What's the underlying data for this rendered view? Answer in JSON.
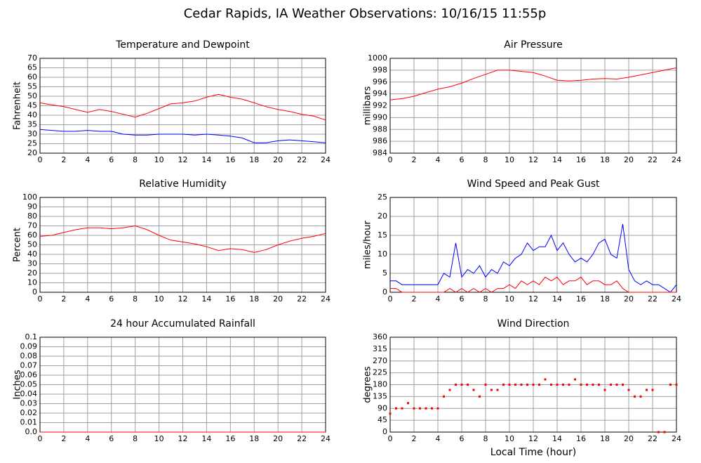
{
  "title": "Cedar Rapids, IA Weather Observations: 10/16/15 11:55p",
  "xlabel": "Local Time (hour)",
  "chart_data": [
    {
      "type": "line",
      "title": "Temperature and Dewpoint",
      "ylabel": "Fahrenheit",
      "x": [
        0,
        1,
        2,
        3,
        4,
        5,
        6,
        7,
        8,
        9,
        10,
        11,
        12,
        13,
        14,
        15,
        16,
        17,
        18,
        19,
        20,
        21,
        22,
        23,
        24
      ],
      "series": [
        {
          "color": "#ff0000",
          "values": [
            46.5,
            45.5,
            44.5,
            43,
            41.5,
            43,
            42,
            40.5,
            39,
            41,
            43.5,
            46,
            46.5,
            47.5,
            49.5,
            51,
            49.5,
            48.5,
            46.5,
            44.5,
            43,
            42,
            40.5,
            39.5,
            37.5
          ]
        },
        {
          "color": "#0000ff",
          "values": [
            32.5,
            32,
            31.5,
            31.5,
            32,
            31.5,
            31.5,
            30,
            29.5,
            29.5,
            30,
            30,
            30,
            29.5,
            30,
            29.5,
            29,
            28,
            25.5,
            25.5,
            26.5,
            27,
            26.5,
            26,
            25.5
          ]
        }
      ],
      "xlim": [
        0,
        24
      ],
      "xticks": [
        0,
        2,
        4,
        6,
        8,
        10,
        12,
        14,
        16,
        18,
        20,
        22,
        24
      ],
      "ylim": [
        20,
        70
      ],
      "yticks": [
        20,
        25,
        30,
        35,
        40,
        45,
        50,
        55,
        60,
        65,
        70
      ],
      "grid": true
    },
    {
      "type": "line",
      "title": "Air Pressure",
      "ylabel": "millibars",
      "x": [
        0,
        1,
        2,
        3,
        4,
        5,
        6,
        7,
        8,
        9,
        10,
        11,
        12,
        13,
        14,
        15,
        16,
        17,
        18,
        19,
        20,
        21,
        22,
        23,
        24
      ],
      "series": [
        {
          "color": "#ff0000",
          "values": [
            993,
            993.2,
            993.6,
            994.2,
            994.8,
            995.2,
            995.8,
            996.6,
            997.3,
            998,
            998,
            997.8,
            997.6,
            997,
            996.3,
            996.2,
            996.3,
            996.5,
            996.6,
            996.5,
            996.8,
            997.2,
            997.6,
            998,
            998.4
          ]
        }
      ],
      "xlim": [
        0,
        24
      ],
      "xticks": [
        0,
        2,
        4,
        6,
        8,
        10,
        12,
        14,
        16,
        18,
        20,
        22,
        24
      ],
      "ylim": [
        984,
        1000
      ],
      "yticks": [
        984,
        986,
        988,
        990,
        992,
        994,
        996,
        998,
        1000
      ],
      "grid": true
    },
    {
      "type": "line",
      "title": "Relative Humidity",
      "ylabel": "Percent",
      "x": [
        0,
        1,
        2,
        3,
        4,
        5,
        6,
        7,
        8,
        9,
        10,
        11,
        12,
        13,
        14,
        15,
        16,
        17,
        18,
        19,
        20,
        21,
        22,
        23,
        24
      ],
      "series": [
        {
          "color": "#ff0000",
          "values": [
            59,
            60,
            63,
            66,
            68,
            68,
            67,
            68,
            70,
            66,
            60,
            55,
            53,
            51,
            48,
            44,
            46,
            45,
            42,
            45,
            50,
            54,
            57,
            59,
            62
          ]
        }
      ],
      "xlim": [
        0,
        24
      ],
      "xticks": [
        0,
        2,
        4,
        6,
        8,
        10,
        12,
        14,
        16,
        18,
        20,
        22,
        24
      ],
      "ylim": [
        0,
        100
      ],
      "yticks": [
        0,
        10,
        20,
        30,
        40,
        50,
        60,
        70,
        80,
        90,
        100
      ],
      "grid": true
    },
    {
      "type": "line",
      "title": "Wind Speed and Peak Gust",
      "ylabel": "miles/hour",
      "x": [
        0,
        0.5,
        1,
        1.5,
        2,
        2.5,
        3,
        3.5,
        4,
        4.5,
        5,
        5.5,
        6,
        6.5,
        7,
        7.5,
        8,
        8.5,
        9,
        9.5,
        10,
        10.5,
        11,
        11.5,
        12,
        12.5,
        13,
        13.5,
        14,
        14.5,
        15,
        15.5,
        16,
        16.5,
        17,
        17.5,
        18,
        18.5,
        19,
        19.5,
        20,
        20.5,
        21,
        21.5,
        22,
        22.5,
        23,
        23.5,
        24
      ],
      "series": [
        {
          "color": "#0000ff",
          "values": [
            3,
            3,
            2,
            2,
            2,
            2,
            2,
            2,
            2,
            5,
            4,
            13,
            4,
            6,
            5,
            7,
            4,
            6,
            5,
            8,
            7,
            9,
            10,
            13,
            11,
            12,
            12,
            15,
            11,
            13,
            10,
            8,
            9,
            8,
            10,
            13,
            14,
            10,
            9,
            18,
            6,
            3,
            2,
            3,
            2,
            2,
            1,
            0,
            2
          ]
        },
        {
          "color": "#ff0000",
          "values": [
            1,
            1,
            0,
            0,
            0,
            0,
            0,
            0,
            0,
            0,
            1,
            0,
            1,
            0,
            1,
            0,
            1,
            0,
            1,
            1,
            2,
            1,
            3,
            2,
            3,
            2,
            4,
            3,
            4,
            2,
            3,
            3,
            4,
            2,
            3,
            3,
            2,
            2,
            3,
            1,
            0,
            0,
            0,
            0,
            0,
            0,
            0,
            0,
            0
          ]
        }
      ],
      "xlim": [
        0,
        24
      ],
      "xticks": [
        0,
        2,
        4,
        6,
        8,
        10,
        12,
        14,
        16,
        18,
        20,
        22,
        24
      ],
      "ylim": [
        0,
        25
      ],
      "yticks": [
        0,
        5,
        10,
        15,
        20,
        25
      ],
      "grid": true
    },
    {
      "type": "line",
      "title": "24 hour Accumulated Rainfall",
      "ylabel": "Inches",
      "x": [
        0,
        1,
        2,
        3,
        4,
        5,
        6,
        7,
        8,
        9,
        10,
        11,
        12,
        13,
        14,
        15,
        16,
        17,
        18,
        19,
        20,
        21,
        22,
        23,
        24
      ],
      "series": [
        {
          "color": "#ff0000",
          "values": [
            0,
            0,
            0,
            0,
            0,
            0,
            0,
            0,
            0,
            0,
            0,
            0,
            0,
            0,
            0,
            0,
            0,
            0,
            0,
            0,
            0,
            0,
            0,
            0,
            0
          ]
        }
      ],
      "xlim": [
        0,
        24
      ],
      "xticks": [
        0,
        2,
        4,
        6,
        8,
        10,
        12,
        14,
        16,
        18,
        20,
        22,
        24
      ],
      "ylim": [
        0,
        0.1
      ],
      "yticks": [
        {
          "value": 0,
          "label": "0.0"
        },
        0.01,
        0.02,
        0.03,
        0.04,
        0.05,
        0.06,
        0.07,
        0.08,
        0.09,
        0.1
      ],
      "grid": true
    },
    {
      "type": "scatter",
      "title": "Wind Direction",
      "ylabel": "degrees",
      "x": [
        0,
        0.5,
        1,
        1.5,
        2,
        2.5,
        3,
        3.5,
        4,
        4.5,
        5,
        5.5,
        6,
        6.5,
        7,
        7.5,
        8,
        8.5,
        9,
        9.5,
        10,
        10.5,
        11,
        11.5,
        12,
        12.5,
        13,
        13.5,
        14,
        14.5,
        15,
        15.5,
        16,
        16.5,
        17,
        17.5,
        18,
        18.5,
        19,
        19.5,
        20,
        20.5,
        21,
        21.5,
        22,
        22.5,
        23,
        23.5,
        24
      ],
      "series": [
        {
          "color": "#ff0000",
          "values": [
            70,
            90,
            90,
            110,
            90,
            90,
            90,
            90,
            90,
            135,
            160,
            180,
            180,
            180,
            160,
            135,
            180,
            160,
            160,
            180,
            180,
            180,
            180,
            180,
            180,
            180,
            200,
            180,
            180,
            180,
            180,
            200,
            180,
            180,
            180,
            180,
            160,
            180,
            180,
            180,
            160,
            135,
            135,
            160,
            160,
            0,
            0,
            180,
            180
          ]
        }
      ],
      "xlim": [
        0,
        24
      ],
      "xticks": [
        0,
        2,
        4,
        6,
        8,
        10,
        12,
        14,
        16,
        18,
        20,
        22,
        24
      ],
      "ylim": [
        0,
        360
      ],
      "yticks": [
        0,
        45,
        90,
        135,
        180,
        225,
        270,
        315,
        360
      ],
      "grid": true
    }
  ]
}
